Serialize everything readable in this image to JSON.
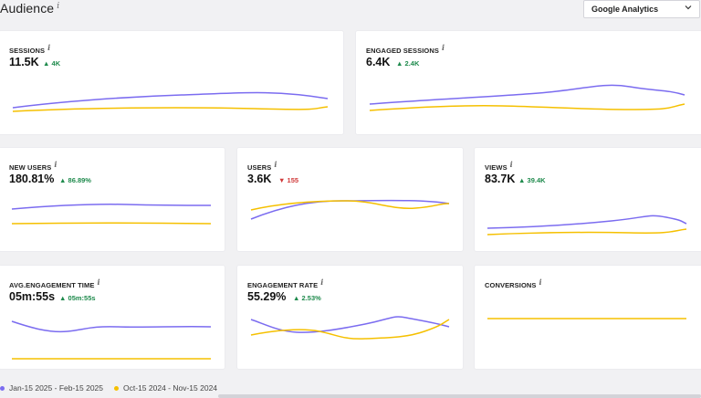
{
  "page": {
    "title": "Audience",
    "info_glyph": "i"
  },
  "source_select": {
    "value": "Google Analytics"
  },
  "colors": {
    "current": "#7b6cf0",
    "previous": "#f5c000",
    "up": "#1e8a4c",
    "down": "#d03a3a"
  },
  "cards": [
    {
      "label": "SESSIONS",
      "value": "11.5K",
      "delta": "4K",
      "trend": "up"
    },
    {
      "label": "ENGAGED SESSIONS",
      "value": "6.4K",
      "delta": "2.4K",
      "trend": "up"
    },
    {
      "label": "NEW USERS",
      "value": "180.81%",
      "delta": "86.89%",
      "trend": "up"
    },
    {
      "label": "USERS",
      "value": "3.6K",
      "delta": "155",
      "trend": "down"
    },
    {
      "label": "VIEWS",
      "value": "83.7K",
      "delta": "39.4K",
      "trend": "up"
    },
    {
      "label": "AVG.ENGAGEMENT TIME",
      "value": "05m:55s",
      "delta": "05m:55s",
      "trend": "up"
    },
    {
      "label": "ENGAGEMENT RATE",
      "value": "55.29%",
      "delta": "2.53%",
      "trend": "up"
    },
    {
      "label": "CONVERSIONS",
      "value": "",
      "delta": "",
      "trend": ""
    }
  ],
  "legend": {
    "current": "Jan-15 2025 - Feb-15 2025",
    "previous": "Oct-15 2024 - Nov-15 2024"
  }
}
